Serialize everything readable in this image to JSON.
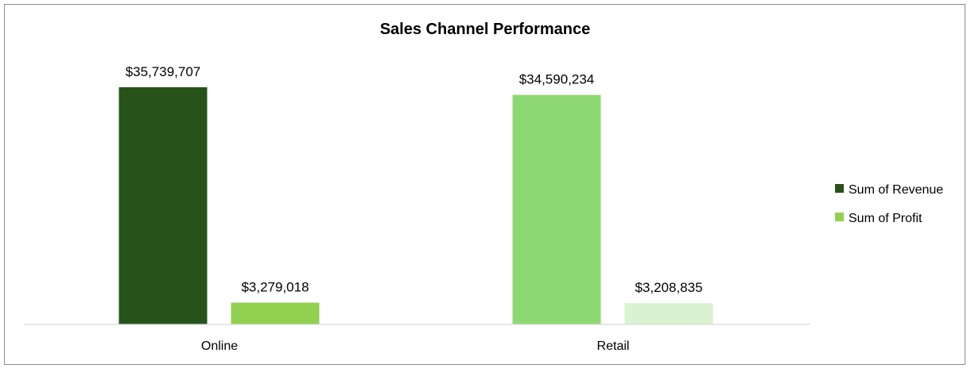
{
  "chart_data": {
    "type": "bar",
    "title": "Sales Channel Performance",
    "xlabel": "",
    "ylabel": "",
    "categories": [
      "Online",
      "Retail"
    ],
    "series": [
      {
        "name": "Sum of Revenue",
        "values": [
          35739707,
          34590234
        ],
        "labels": [
          "$35,739,707",
          "$34,590,234"
        ],
        "colors": [
          "#27531a",
          "#8ed873"
        ]
      },
      {
        "name": "Sum of Profit",
        "values": [
          3279018,
          3208835
        ],
        "labels": [
          "$3,279,018",
          "$3,208,835"
        ],
        "colors": [
          "#92d050",
          "#d9f2d0"
        ]
      }
    ],
    "legend": {
      "position": "right",
      "items": [
        {
          "label": "Sum of Revenue",
          "color": "#27531a"
        },
        {
          "label": "Sum of Profit",
          "color": "#92d050"
        }
      ]
    },
    "ylim": [
      0,
      40000000
    ],
    "grid": false,
    "axis_color": "#d9d9d9"
  }
}
